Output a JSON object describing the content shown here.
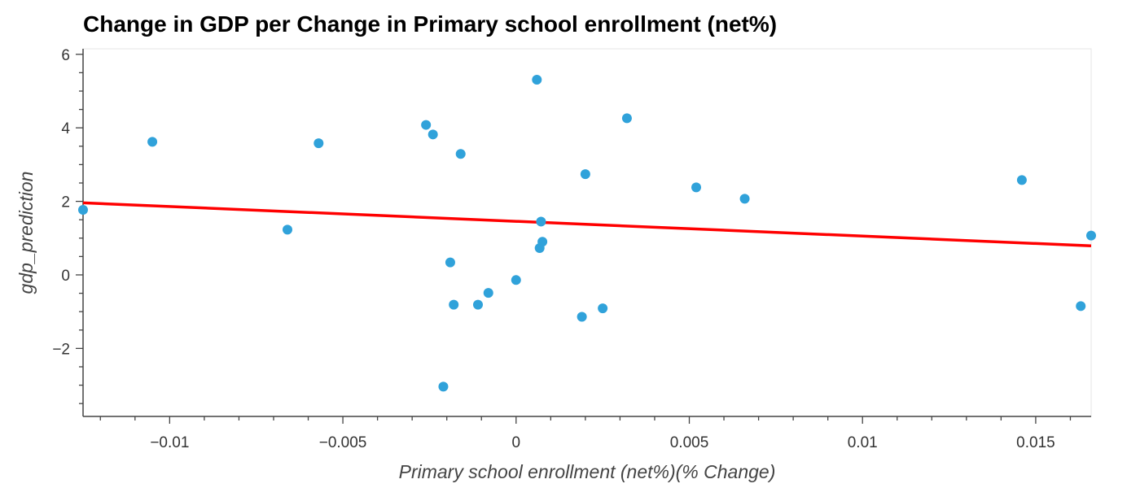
{
  "chart_data": {
    "type": "scatter",
    "title": "Change in GDP per Change in Primary school enrollment (net%)",
    "xlabel": "Primary school enrollment (net%)(% Change)",
    "ylabel": "gdp_prediction",
    "xlim": [
      -0.0125,
      0.0166
    ],
    "ylim": [
      -3.85,
      6.15
    ],
    "x_ticks": [
      -0.01,
      -0.005,
      0,
      0.005,
      0.01,
      0.015
    ],
    "x_tick_labels": [
      "−0.01",
      "−0.005",
      "0",
      "0.005",
      "0.01",
      "0.015"
    ],
    "y_ticks": [
      -2,
      0,
      2,
      4,
      6
    ],
    "y_tick_labels": [
      "−2",
      "0",
      "2",
      "4",
      "6"
    ],
    "point_color": "#30a2da",
    "line_color": "#ff0000",
    "points": [
      {
        "x": -0.0125,
        "y": 1.77
      },
      {
        "x": -0.0105,
        "y": 3.62
      },
      {
        "x": -0.0066,
        "y": 1.23
      },
      {
        "x": -0.0057,
        "y": 3.58
      },
      {
        "x": -0.0026,
        "y": 4.08
      },
      {
        "x": -0.0024,
        "y": 3.82
      },
      {
        "x": -0.0021,
        "y": -3.04
      },
      {
        "x": -0.0019,
        "y": 0.34
      },
      {
        "x": -0.0018,
        "y": -0.81
      },
      {
        "x": -0.0016,
        "y": 3.29
      },
      {
        "x": -0.0011,
        "y": -0.81
      },
      {
        "x": -0.0008,
        "y": -0.49
      },
      {
        "x": 0.0,
        "y": -0.14
      },
      {
        "x": 0.0006,
        "y": 5.31
      },
      {
        "x": 0.00068,
        "y": 0.73
      },
      {
        "x": 0.00072,
        "y": 1.45
      },
      {
        "x": 0.00076,
        "y": 0.9
      },
      {
        "x": 0.0019,
        "y": -1.14
      },
      {
        "x": 0.002,
        "y": 2.74
      },
      {
        "x": 0.0025,
        "y": -0.91
      },
      {
        "x": 0.0032,
        "y": 4.26
      },
      {
        "x": 0.0052,
        "y": 2.38
      },
      {
        "x": 0.0066,
        "y": 2.07
      },
      {
        "x": 0.0146,
        "y": 2.58
      },
      {
        "x": 0.0163,
        "y": -0.85
      },
      {
        "x": 0.0166,
        "y": 1.07
      }
    ],
    "regression_line": {
      "x": [
        -0.0125,
        0.0166
      ],
      "y": [
        1.96,
        0.79
      ]
    }
  }
}
